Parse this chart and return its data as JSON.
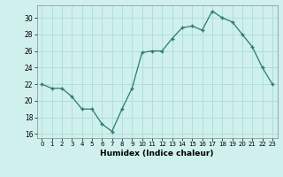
{
  "x": [
    0,
    1,
    2,
    3,
    4,
    5,
    6,
    7,
    8,
    9,
    10,
    11,
    12,
    13,
    14,
    15,
    16,
    17,
    18,
    19,
    20,
    21,
    22,
    23
  ],
  "y": [
    22.0,
    21.5,
    21.5,
    20.5,
    19.0,
    19.0,
    17.2,
    16.3,
    19.0,
    21.5,
    25.8,
    26.0,
    26.0,
    27.5,
    28.8,
    29.0,
    28.5,
    30.8,
    30.0,
    29.5,
    28.0,
    26.5,
    24.0,
    22.0
  ],
  "line_color": "#2d7a6e",
  "marker": "+",
  "bg_color": "#cff0ec",
  "grid_color": "#aaddda",
  "xlabel": "Humidex (Indice chaleur)",
  "ylim": [
    15.5,
    31.5
  ],
  "xlim": [
    -0.5,
    23.5
  ],
  "yticks": [
    16,
    18,
    20,
    22,
    24,
    26,
    28,
    30
  ],
  "xticks": [
    0,
    1,
    2,
    3,
    4,
    5,
    6,
    7,
    8,
    9,
    10,
    11,
    12,
    13,
    14,
    15,
    16,
    17,
    18,
    19,
    20,
    21,
    22,
    23
  ]
}
